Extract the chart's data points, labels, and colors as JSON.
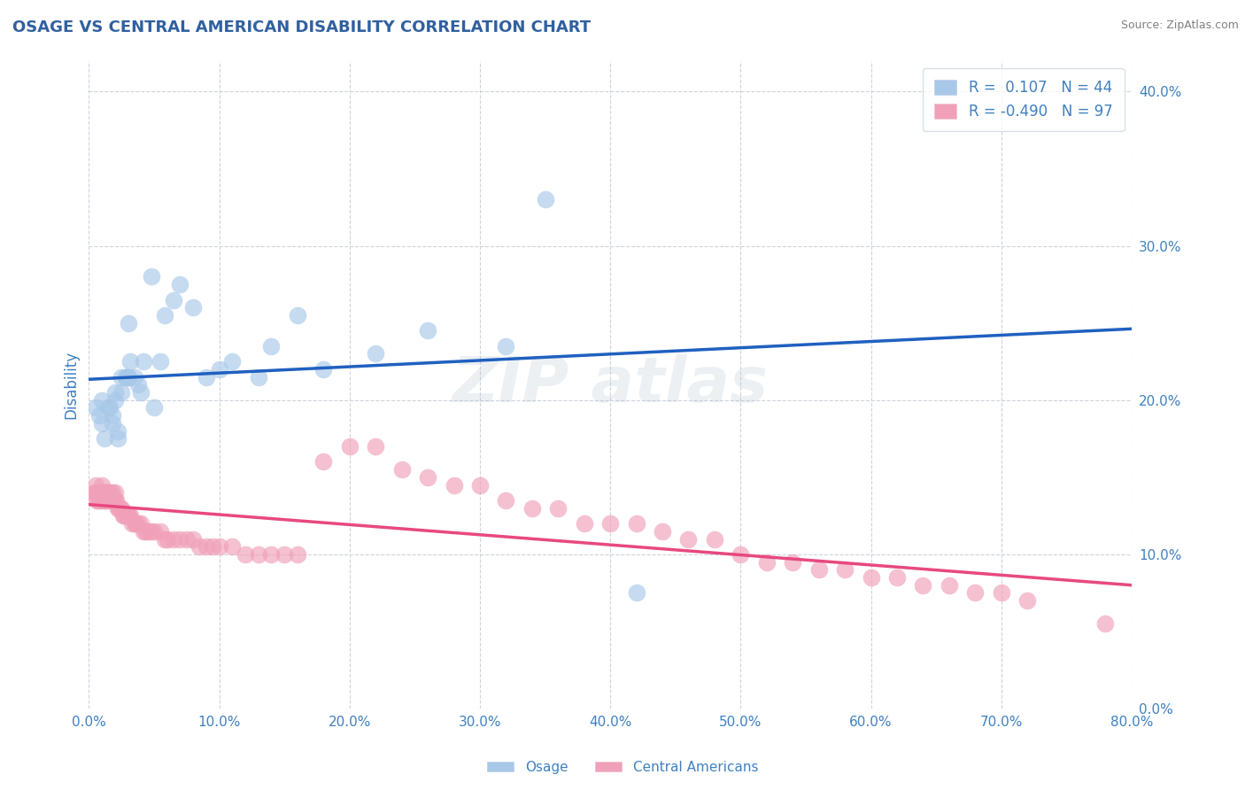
{
  "title": "OSAGE VS CENTRAL AMERICAN DISABILITY CORRELATION CHART",
  "source": "Source: ZipAtlas.com",
  "ylabel": "Disability",
  "xlim": [
    0.0,
    0.8
  ],
  "ylim": [
    0.0,
    0.42
  ],
  "xticks": [
    0.0,
    0.1,
    0.2,
    0.3,
    0.4,
    0.5,
    0.6,
    0.7,
    0.8
  ],
  "yticks": [
    0.0,
    0.1,
    0.2,
    0.3,
    0.4
  ],
  "osage_r": 0.107,
  "osage_n": 44,
  "central_r": -0.49,
  "central_n": 97,
  "osage_color": "#a8c8e8",
  "central_color": "#f0a0b8",
  "osage_line_color": "#2060c0",
  "central_line_color": "#e84880",
  "dashed_line_color": "#b0b8c8",
  "background_color": "#ffffff",
  "grid_color": "#c8d0d8",
  "title_color": "#3060a0",
  "axis_color": "#4080c0",
  "source_color": "#808080",
  "osage_scatter_x": [
    0.005,
    0.008,
    0.01,
    0.01,
    0.012,
    0.015,
    0.016,
    0.018,
    0.018,
    0.02,
    0.02,
    0.022,
    0.022,
    0.025,
    0.025,
    0.028,
    0.028,
    0.03,
    0.03,
    0.03,
    0.032,
    0.035,
    0.038,
    0.04,
    0.042,
    0.048,
    0.05,
    0.055,
    0.058,
    0.065,
    0.07,
    0.08,
    0.09,
    0.1,
    0.11,
    0.13,
    0.14,
    0.16,
    0.18,
    0.22,
    0.26,
    0.32,
    0.35,
    0.42
  ],
  "osage_scatter_y": [
    0.195,
    0.19,
    0.2,
    0.185,
    0.175,
    0.195,
    0.195,
    0.19,
    0.185,
    0.2,
    0.205,
    0.18,
    0.175,
    0.215,
    0.205,
    0.215,
    0.215,
    0.215,
    0.25,
    0.215,
    0.225,
    0.215,
    0.21,
    0.205,
    0.225,
    0.28,
    0.195,
    0.225,
    0.255,
    0.265,
    0.275,
    0.26,
    0.215,
    0.22,
    0.225,
    0.215,
    0.235,
    0.255,
    0.22,
    0.23,
    0.245,
    0.235,
    0.33,
    0.075
  ],
  "central_scatter_x": [
    0.004,
    0.005,
    0.006,
    0.006,
    0.007,
    0.007,
    0.008,
    0.008,
    0.009,
    0.009,
    0.01,
    0.01,
    0.01,
    0.011,
    0.012,
    0.012,
    0.013,
    0.013,
    0.014,
    0.015,
    0.015,
    0.015,
    0.016,
    0.016,
    0.017,
    0.018,
    0.018,
    0.019,
    0.02,
    0.02,
    0.021,
    0.022,
    0.023,
    0.024,
    0.025,
    0.026,
    0.027,
    0.028,
    0.03,
    0.03,
    0.032,
    0.033,
    0.035,
    0.036,
    0.038,
    0.04,
    0.042,
    0.043,
    0.045,
    0.048,
    0.05,
    0.055,
    0.058,
    0.06,
    0.065,
    0.07,
    0.075,
    0.08,
    0.085,
    0.09,
    0.095,
    0.1,
    0.11,
    0.12,
    0.13,
    0.14,
    0.15,
    0.16,
    0.18,
    0.2,
    0.22,
    0.24,
    0.26,
    0.28,
    0.3,
    0.32,
    0.34,
    0.36,
    0.38,
    0.4,
    0.42,
    0.44,
    0.46,
    0.48,
    0.5,
    0.52,
    0.54,
    0.56,
    0.58,
    0.6,
    0.62,
    0.64,
    0.66,
    0.68,
    0.7,
    0.72,
    0.78
  ],
  "central_scatter_y": [
    0.14,
    0.145,
    0.14,
    0.135,
    0.14,
    0.135,
    0.14,
    0.135,
    0.14,
    0.14,
    0.145,
    0.14,
    0.135,
    0.14,
    0.135,
    0.14,
    0.135,
    0.135,
    0.14,
    0.14,
    0.135,
    0.14,
    0.14,
    0.135,
    0.135,
    0.14,
    0.135,
    0.135,
    0.14,
    0.135,
    0.135,
    0.13,
    0.13,
    0.13,
    0.13,
    0.125,
    0.125,
    0.125,
    0.125,
    0.125,
    0.125,
    0.12,
    0.12,
    0.12,
    0.12,
    0.12,
    0.115,
    0.115,
    0.115,
    0.115,
    0.115,
    0.115,
    0.11,
    0.11,
    0.11,
    0.11,
    0.11,
    0.11,
    0.105,
    0.105,
    0.105,
    0.105,
    0.105,
    0.1,
    0.1,
    0.1,
    0.1,
    0.1,
    0.16,
    0.17,
    0.17,
    0.155,
    0.15,
    0.145,
    0.145,
    0.135,
    0.13,
    0.13,
    0.12,
    0.12,
    0.12,
    0.115,
    0.11,
    0.11,
    0.1,
    0.095,
    0.095,
    0.09,
    0.09,
    0.085,
    0.085,
    0.08,
    0.08,
    0.075,
    0.075,
    0.07,
    0.055
  ]
}
